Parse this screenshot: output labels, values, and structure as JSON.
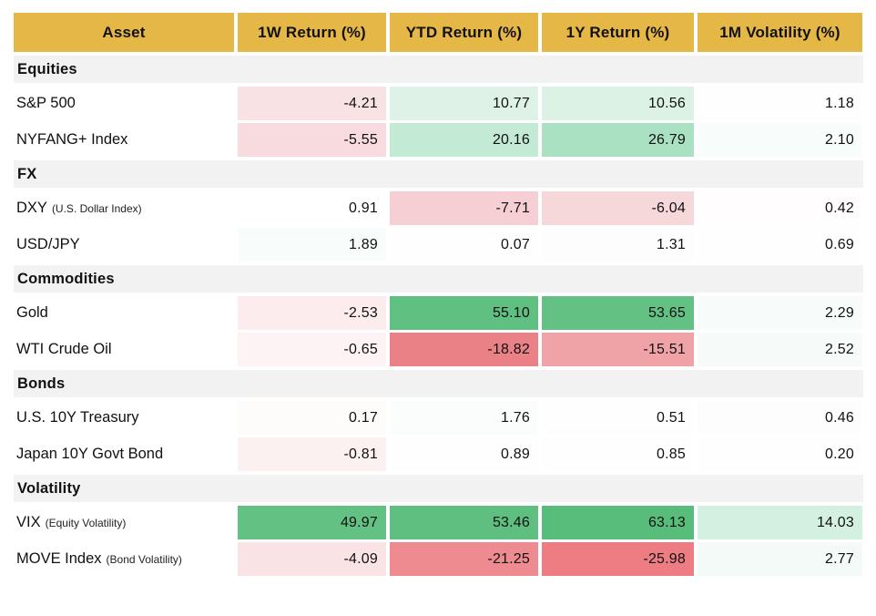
{
  "chart_data": {
    "type": "table",
    "description_visible": "",
    "columns": [
      "Asset",
      "1W Return (%)",
      "YTD Return (%)",
      "1Y Return (%)",
      "1M Volatility (%)"
    ],
    "legend": "none",
    "colors": {
      "header_bg": "#e5b747",
      "section_bg": "#f2f2f2",
      "text": "#111111",
      "positive_strong": "#58bd7a",
      "positive_light": "#def2e7",
      "negative_strong": "#ed7d82",
      "negative_light": "#f9e2e4"
    },
    "sections": [
      {
        "label": "Equities",
        "rows": [
          {
            "asset": "S&P 500",
            "note": "",
            "values": [
              "-4.21",
              "10.77",
              "10.56",
              "1.18"
            ],
            "cell_bg": [
              "#f9e2e4",
              "#def2e7",
              "#dcf2e5",
              "#fdfefd"
            ]
          },
          {
            "asset": "NYFANG+ Index",
            "note": "",
            "values": [
              "-5.55",
              "20.16",
              "26.79",
              "2.10"
            ],
            "cell_bg": [
              "#f7dbde",
              "#c3ead4",
              "#a9e1c2",
              "#f8fcfa"
            ]
          }
        ]
      },
      {
        "label": "FX",
        "rows": [
          {
            "asset": "DXY",
            "note": "(U.S. Dollar Index)",
            "values": [
              "0.91",
              "-7.71",
              "-6.04",
              "0.42"
            ],
            "cell_bg": [
              "#ffffff",
              "#f5cfd3",
              "#f6d7da",
              "#fffdfd"
            ]
          },
          {
            "asset": "USD/JPY",
            "note": "",
            "values": [
              "1.89",
              "0.07",
              "1.31",
              "0.69"
            ],
            "cell_bg": [
              "#f8fcfa",
              "#fffefe",
              "#fcfdfc",
              "#fefefe"
            ]
          }
        ]
      },
      {
        "label": "Commodities",
        "rows": [
          {
            "asset": "Gold",
            "note": "",
            "values": [
              "-2.53",
              "55.10",
              "53.65",
              "2.29"
            ],
            "cell_bg": [
              "#fcecee",
              "#60c081",
              "#62c183",
              "#f7fbf9"
            ]
          },
          {
            "asset": "WTI Crude Oil",
            "note": "",
            "values": [
              "-0.65",
              "-18.82",
              "-15.51",
              "2.52"
            ],
            "cell_bg": [
              "#fdf3f4",
              "#ea8186",
              "#f0a3a7",
              "#f6faf8"
            ]
          }
        ]
      },
      {
        "label": "Bonds",
        "rows": [
          {
            "asset": "U.S. 10Y Treasury",
            "note": "",
            "values": [
              "0.17",
              "1.76",
              "0.51",
              "0.46"
            ],
            "cell_bg": [
              "#fefbfb",
              "#fafdfb",
              "#fefefe",
              "#fefdfd"
            ]
          },
          {
            "asset": "Japan 10Y Govt Bond",
            "note": "",
            "values": [
              "-0.81",
              "0.89",
              "0.85",
              "0.20"
            ],
            "cell_bg": [
              "#fcf1f1",
              "#fdfefd",
              "#fdfefd",
              "#fffefe"
            ]
          }
        ]
      },
      {
        "label": "Volatility",
        "rows": [
          {
            "asset": "VIX",
            "note": "(Equity Volatility)",
            "values": [
              "49.97",
              "53.46",
              "63.13",
              "14.03"
            ],
            "cell_bg": [
              "#63c283",
              "#5ebf80",
              "#58bd7a",
              "#d3f0e0"
            ]
          },
          {
            "asset": "MOVE Index",
            "note": "(Bond Volatility)",
            "values": [
              "-4.09",
              "-21.25",
              "-25.98",
              "2.77"
            ],
            "cell_bg": [
              "#fae3e5",
              "#ee8b90",
              "#ed7d82",
              "#f4faf7"
            ]
          }
        ]
      }
    ]
  }
}
